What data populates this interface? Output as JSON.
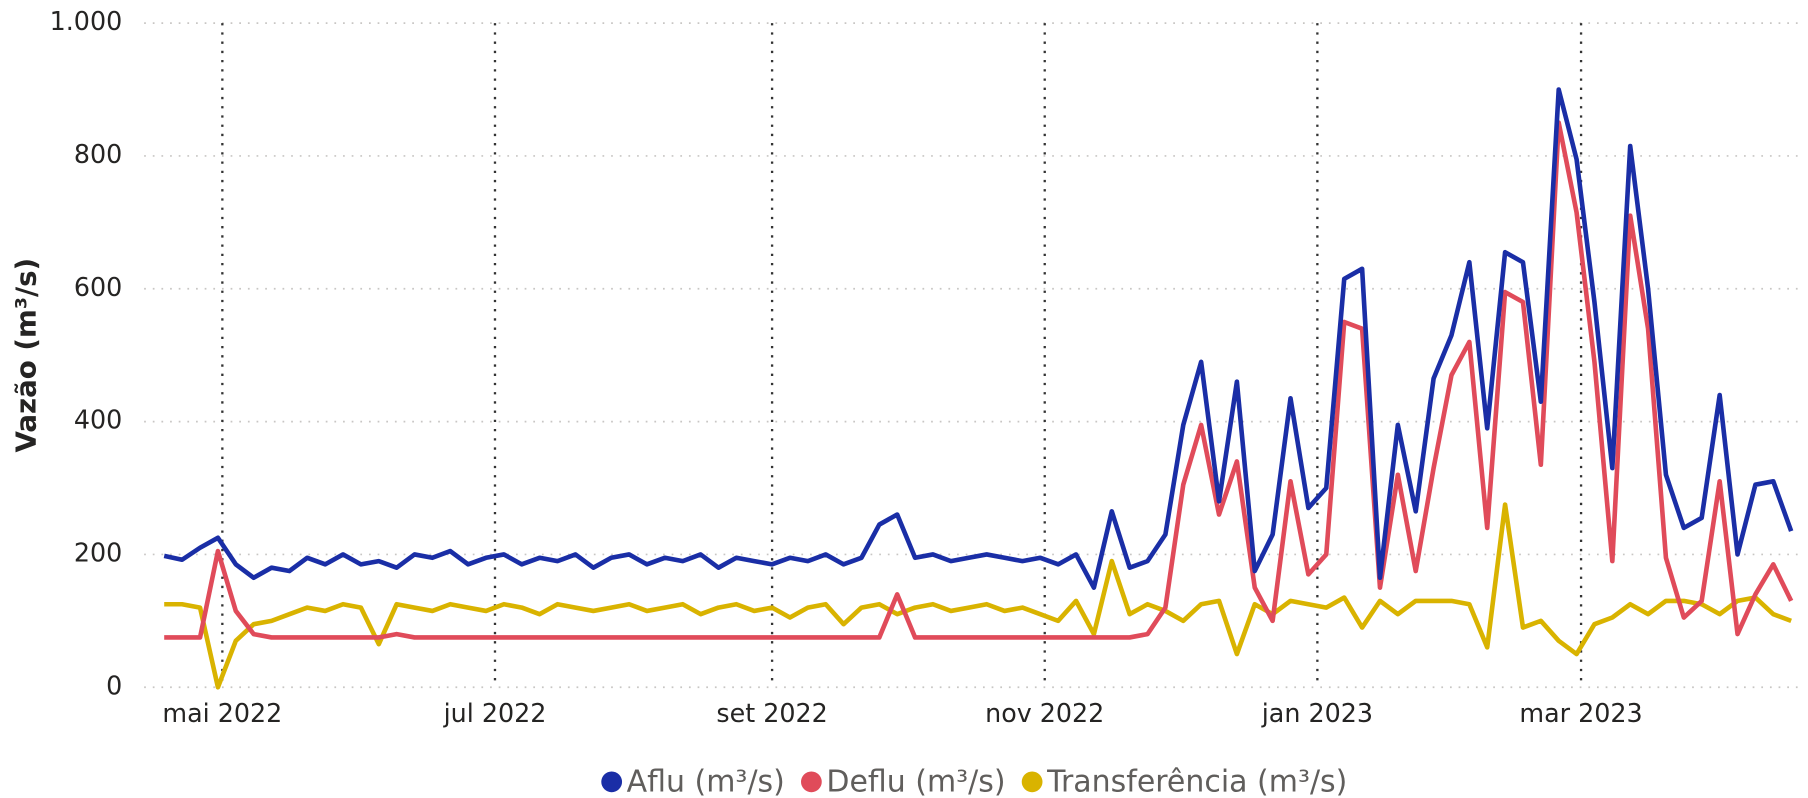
{
  "chart_data": {
    "type": "line",
    "y_label": "Vazão (m³/s)",
    "ylim": [
      0,
      1000
    ],
    "yticks": [
      0,
      200,
      400,
      600,
      800,
      {
        "value": 1000,
        "label": "1.000"
      }
    ],
    "xlim": [
      -17.5,
      354
    ],
    "xticks": [
      {
        "value": 0,
        "label": "mai 2022"
      },
      {
        "value": 61,
        "label": "jul 2022"
      },
      {
        "value": 123,
        "label": "set 2022"
      },
      {
        "value": 184,
        "label": "nov 2022"
      },
      {
        "value": 245,
        "label": "jan 2023"
      },
      {
        "value": 304,
        "label": "mar 2023"
      }
    ],
    "grid": true,
    "legend": "bottom",
    "x": [
      -13,
      -9,
      -5,
      -1,
      3,
      7,
      11,
      15,
      19,
      23,
      27,
      31,
      35,
      39,
      43,
      47,
      51,
      55,
      59,
      63,
      67,
      71,
      75,
      79,
      83,
      87,
      91,
      95,
      99,
      103,
      107,
      111,
      115,
      119,
      123,
      127,
      131,
      135,
      139,
      143,
      147,
      151,
      155,
      159,
      163,
      167,
      171,
      175,
      179,
      183,
      187,
      191,
      195,
      199,
      203,
      207,
      211,
      215,
      219,
      223,
      227,
      231,
      235,
      239,
      243,
      247,
      251,
      255,
      259,
      263,
      267,
      271,
      275,
      279,
      283,
      287,
      291,
      295,
      299,
      303,
      307,
      311,
      315,
      319,
      323,
      327,
      331,
      335,
      339,
      343,
      347,
      351
    ],
    "series": [
      {
        "name": "Aflu (m³/s)",
        "color": "#1a2ea6",
        "values": [
          198,
          192,
          210,
          225,
          185,
          165,
          180,
          175,
          195,
          185,
          200,
          185,
          190,
          180,
          200,
          195,
          205,
          185,
          195,
          200,
          185,
          195,
          190,
          200,
          180,
          195,
          200,
          185,
          195,
          190,
          200,
          180,
          195,
          190,
          185,
          195,
          190,
          200,
          185,
          195,
          245,
          260,
          195,
          200,
          190,
          195,
          200,
          195,
          190,
          195,
          185,
          200,
          150,
          265,
          180,
          190,
          230,
          395,
          490,
          280,
          460,
          175,
          230,
          435,
          270,
          300,
          615,
          630,
          165,
          395,
          265,
          465,
          530,
          640,
          390,
          655,
          640,
          430,
          900,
          795,
          580,
          330,
          815,
          600,
          320,
          240,
          255,
          440,
          200,
          305,
          310,
          235
        ]
      },
      {
        "name": "Deflu (m³/s)",
        "color": "#e04b5a",
        "values": [
          75,
          75,
          75,
          205,
          115,
          80,
          75,
          75,
          75,
          75,
          75,
          75,
          75,
          80,
          75,
          75,
          75,
          75,
          75,
          75,
          75,
          75,
          75,
          75,
          75,
          75,
          75,
          75,
          75,
          75,
          75,
          75,
          75,
          75,
          75,
          75,
          75,
          75,
          75,
          75,
          75,
          140,
          75,
          75,
          75,
          75,
          75,
          75,
          75,
          75,
          75,
          75,
          75,
          75,
          75,
          80,
          120,
          305,
          395,
          260,
          340,
          150,
          100,
          310,
          170,
          200,
          550,
          540,
          150,
          320,
          175,
          330,
          470,
          520,
          240,
          595,
          580,
          335,
          850,
          715,
          490,
          190,
          710,
          540,
          195,
          105,
          130,
          310,
          80,
          140,
          185,
          130
        ]
      },
      {
        "name": "Transferência (m³/s)",
        "color": "#d9b300",
        "values": [
          125,
          125,
          120,
          0,
          70,
          95,
          100,
          110,
          120,
          115,
          125,
          120,
          65,
          125,
          120,
          115,
          125,
          120,
          115,
          125,
          120,
          110,
          125,
          120,
          115,
          120,
          125,
          115,
          120,
          125,
          110,
          120,
          125,
          115,
          120,
          105,
          120,
          125,
          95,
          120,
          125,
          110,
          120,
          125,
          115,
          120,
          125,
          115,
          120,
          110,
          100,
          130,
          80,
          190,
          110,
          125,
          115,
          100,
          125,
          130,
          50,
          125,
          110,
          130,
          125,
          120,
          135,
          90,
          130,
          110,
          130,
          130,
          130,
          125,
          60,
          275,
          90,
          100,
          70,
          50,
          95,
          105,
          125,
          110,
          130,
          130,
          125,
          110,
          130,
          135,
          110,
          100
        ]
      }
    ]
  }
}
